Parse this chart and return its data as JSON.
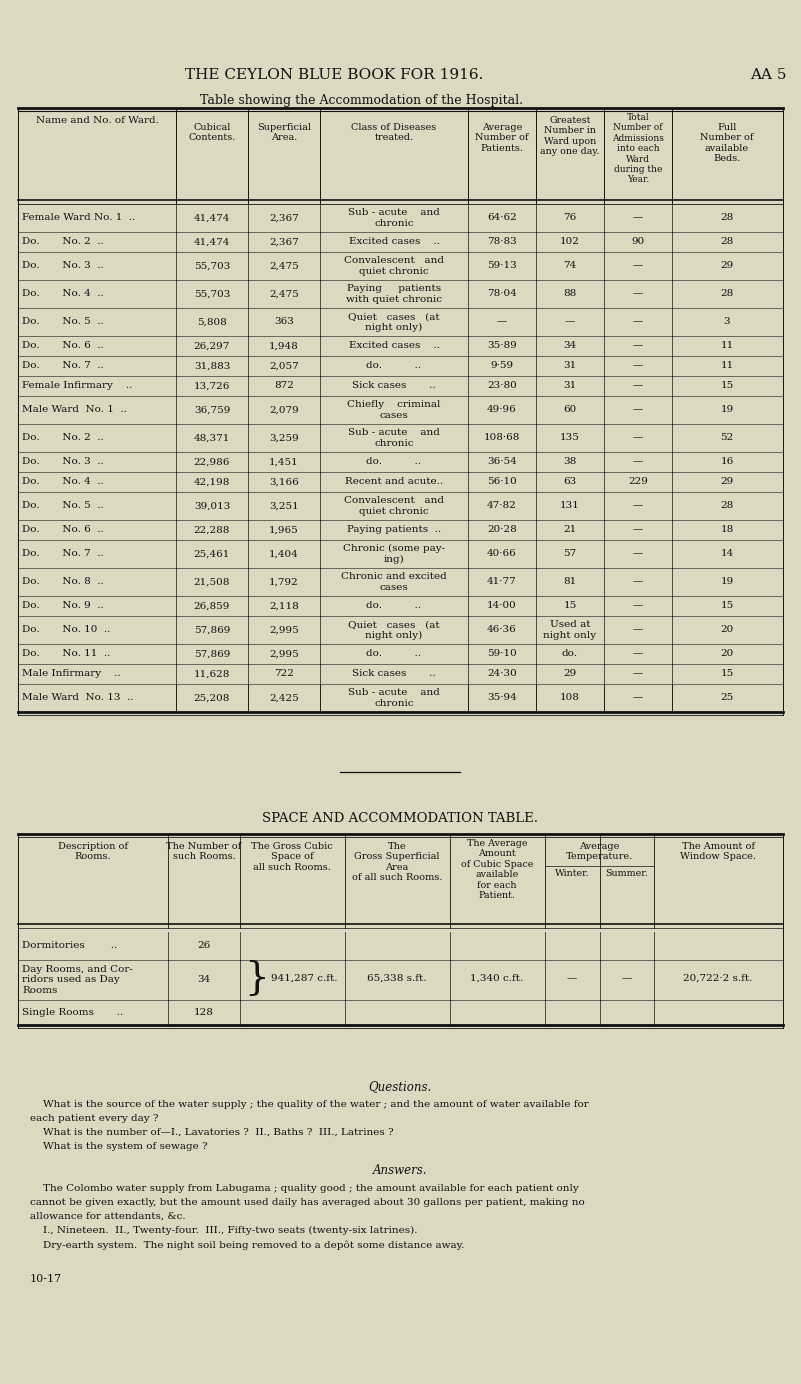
{
  "page_title": "THE CEYLON BLUE BOOK FOR 1916.",
  "page_ref": "AA 5",
  "table1_title": "Table showing the Accommodation of the Hospital.",
  "bg_color": "#ddd8c0",
  "text_color": "#111111",
  "line_color": "#111111",
  "table1_rows": [
    [
      "Female Ward No. 1  ..",
      "41,474",
      "2,367",
      "Sub - acute    and\nchronic",
      "64·62",
      "76",
      "—",
      "28"
    ],
    [
      "Do.       No. 2  ..",
      "41,474",
      "2,367",
      "Excited cases    ..",
      "78·83",
      "102",
      "90",
      "28"
    ],
    [
      "Do.       No. 3  ..",
      "55,703",
      "2,475",
      "Convalescent   and\nquiet chronic",
      "59·13",
      "74",
      "—",
      "29"
    ],
    [
      "Do.       No. 4  ..",
      "55,703",
      "2,475",
      "Paying     patients\nwith quiet chronic",
      "78·04",
      "88",
      "—",
      "28"
    ],
    [
      "Do.       No. 5  ..",
      "5,808",
      "363",
      "Quiet   cases   (at\nnight only)",
      "—",
      "—",
      "—",
      "3"
    ],
    [
      "Do.       No. 6  ..",
      "26,297",
      "1,948",
      "Excited cases    ..",
      "35·89",
      "34",
      "—",
      "11"
    ],
    [
      "Do.       No. 7  ..",
      "31,883",
      "2,057",
      "do.          ..",
      "9·59",
      "31",
      "—",
      "11"
    ],
    [
      "Female Infirmary    ..",
      "13,726",
      "872",
      "Sick cases       ..",
      "23·80",
      "31",
      "—",
      "15"
    ],
    [
      "Male Ward  No. 1  ..",
      "36,759",
      "2,079",
      "Chiefly    criminal\ncases",
      "49·96",
      "60",
      "—",
      "19"
    ],
    [
      "Do.       No. 2  ..",
      "48,371",
      "3,259",
      "Sub - acute    and\nchronic",
      "108·68",
      "135",
      "—",
      "52"
    ],
    [
      "Do.       No. 3  ..",
      "22,986",
      "1,451",
      "do.          ..",
      "36·54",
      "38",
      "—",
      "16"
    ],
    [
      "Do.       No. 4  ..",
      "42,198",
      "3,166",
      "Recent and acute..",
      "56·10",
      "63",
      "229",
      "29"
    ],
    [
      "Do.       No. 5  ..",
      "39,013",
      "3,251",
      "Convalescent   and\nquiet chronic",
      "47·82",
      "131",
      "—",
      "28"
    ],
    [
      "Do.       No. 6  ..",
      "22,288",
      "1,965",
      "Paying patients  ..",
      "20·28",
      "21",
      "—",
      "18"
    ],
    [
      "Do.       No. 7  ..",
      "25,461",
      "1,404",
      "Chronic (some pay-\ning)",
      "40·66",
      "57",
      "—",
      "14"
    ],
    [
      "Do.       No. 8  ..",
      "21,508",
      "1,792",
      "Chronic and excited\ncases",
      "41·77",
      "81",
      "—",
      "19"
    ],
    [
      "Do.       No. 9  ..",
      "26,859",
      "2,118",
      "do.          ..",
      "14·00",
      "15",
      "—",
      "15"
    ],
    [
      "Do.       No. 10  ..",
      "57,869",
      "2,995",
      "Quiet   cases   (at\nnight only)",
      "46·36",
      "Used at\nnight only",
      "—",
      "20"
    ],
    [
      "Do.       No. 11  ..",
      "57,869",
      "2,995",
      "do.          ..",
      "59·10",
      "do.",
      "—",
      "20"
    ],
    [
      "Male Infirmary    ..",
      "11,628",
      "722",
      "Sick cases       ..",
      "24·30",
      "29",
      "—",
      "15"
    ],
    [
      "Male Ward  No. 13  ..",
      "25,208",
      "2,425",
      "Sub - acute    and\nchronic",
      "35·94",
      "108",
      "—",
      "25"
    ]
  ],
  "table2_title": "SPACE AND ACCOMMODATION TABLE.",
  "table2_rows": [
    [
      "Dormitories        ..",
      "26"
    ],
    [
      "Day Rooms, and Cor-\nridors used as Day\nRooms",
      "34"
    ],
    [
      "Single Rooms       ..",
      "128"
    ]
  ],
  "t2_shared": [
    "941,287 c.ft.",
    "65,338 s.ft.",
    "1,340 c.ft.",
    "—",
    "—",
    "20,722·2 s.ft."
  ],
  "q_title": "Questions.",
  "q_lines": [
    "    What is the source of the water supply ; the quality of the water ; and the amount of water available for",
    "each patient every day ?",
    "    What is the number of—I., Lavatories ?  II., Baths ?  III., Latrines ?",
    "    What is the system of sewage ?"
  ],
  "a_title": "Answers.",
  "a_lines": [
    "    The Colombo water supply from Labugama ; quality good ; the amount available for each patient only",
    "cannot be given exactly, but the amount used daily has averaged about 30 gallons per patient, making no",
    "allowance for attendants, &c.",
    "    I., Nineteen.  II., Twenty-four.  III., Fifty-two seats (twenty-six latrines).",
    "    Dry-earth system.  The night soil being removed to a depôt some distance away."
  ],
  "footer": "10-17"
}
